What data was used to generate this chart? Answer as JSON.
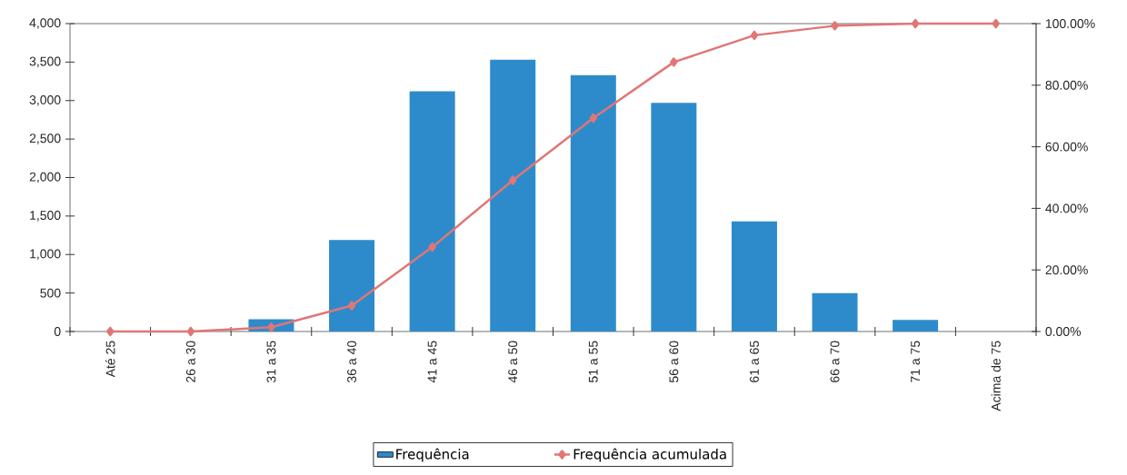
{
  "chart_data": {
    "type": "bar",
    "categories": [
      "Até 25",
      "26 a 30",
      "31 a 35",
      "36 a 40",
      "41 a 45",
      "46 a 50",
      "51 a 55",
      "56 a 60",
      "61 a 65",
      "66 a 70",
      "71 a 75",
      "Acima de 75"
    ],
    "series": [
      {
        "name": "Frequência",
        "color": "#2e8bcb",
        "values": [
          0,
          0,
          160,
          1190,
          3120,
          3530,
          3330,
          2970,
          1430,
          500,
          150,
          0
        ]
      },
      {
        "name": "Frequência acumulada",
        "type": "line",
        "axis": "y2",
        "color": "#e07676",
        "marker": "diamond",
        "values": [
          0,
          0,
          1.4,
          8.4,
          27.4,
          49.1,
          69.3,
          87.5,
          96.2,
          99.3,
          100,
          100
        ]
      }
    ],
    "ylim": [
      0,
      4000
    ],
    "yticks": [
      0,
      500,
      {
        "value": 1000,
        "label": "1,000"
      },
      {
        "value": 1500,
        "label": "1,500"
      },
      {
        "value": 2000,
        "label": "2,000"
      },
      {
        "value": 2500,
        "label": "2,500"
      },
      {
        "value": 3000,
        "label": "3,000"
      },
      {
        "value": 3500,
        "label": "3,500"
      },
      {
        "value": 4000,
        "label": "4,000"
      }
    ],
    "y2lim": [
      0,
      100
    ],
    "y2ticks": [
      {
        "value": 0,
        "label": "0.00%"
      },
      {
        "value": 20,
        "label": "20.00%"
      },
      {
        "value": 40,
        "label": "40.00%"
      },
      {
        "value": 60,
        "label": "60.00%"
      },
      {
        "value": 80,
        "label": "80.00%"
      },
      {
        "value": 100,
        "label": "100.00%"
      }
    ],
    "legend": "bottom"
  }
}
